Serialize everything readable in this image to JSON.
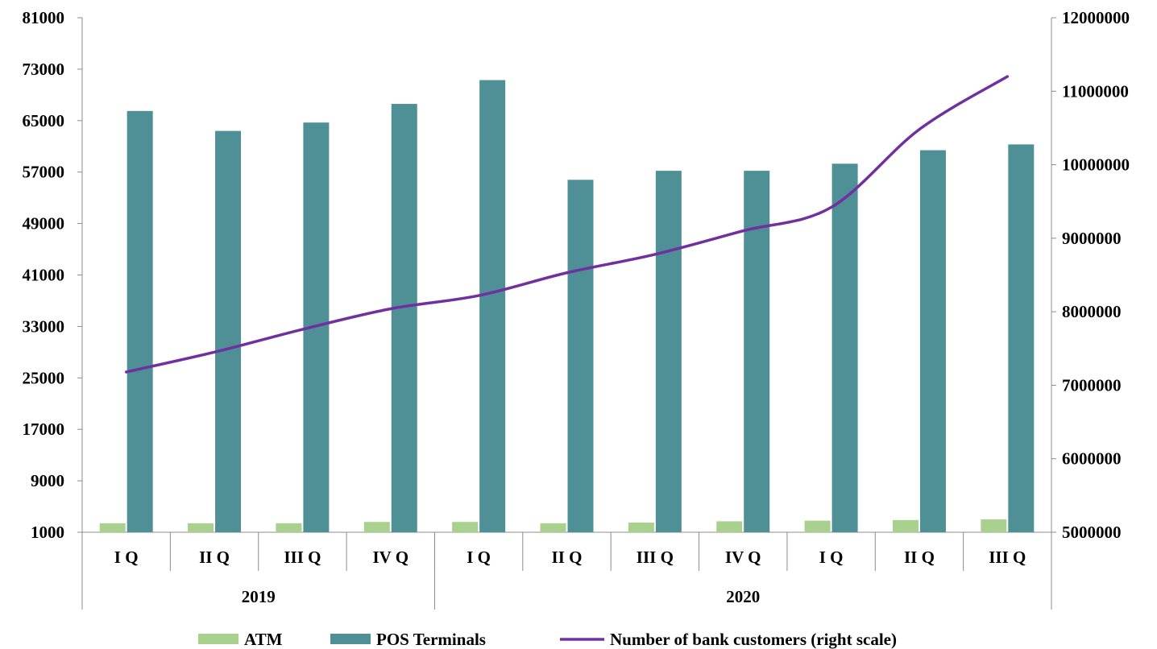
{
  "chart_data": {
    "type": "bar",
    "title": "",
    "xlabel": "",
    "ylabel": "",
    "groups": [
      {
        "label": "2019",
        "categories": [
          "I Q",
          "II Q",
          "III Q",
          "IV Q"
        ]
      },
      {
        "label": "2020",
        "categories": [
          "I Q",
          "II Q",
          "III Q",
          "IV Q",
          "I Q",
          "II Q",
          "III Q"
        ]
      }
    ],
    "categories": [
      "I Q",
      "II Q",
      "III Q",
      "IV Q",
      "I Q",
      "II Q",
      "III Q",
      "IV Q",
      "I Q",
      "II Q",
      "III Q"
    ],
    "ylim": [
      1000,
      81000
    ],
    "y_ticks": [
      "1000",
      "9000",
      "17000",
      "25000",
      "33000",
      "41000",
      "49000",
      "57000",
      "65000",
      "73000",
      "81000"
    ],
    "y2lim": [
      5000000,
      12000000
    ],
    "y2_ticks": [
      "5000000",
      "6000000",
      "7000000",
      "8000000",
      "9000000",
      "10000000",
      "11000000",
      "12000000"
    ],
    "grid": false,
    "legend_position": "bottom",
    "series": [
      {
        "name": "ATM",
        "type": "bar",
        "axis": "left",
        "color": "#a9d18e",
        "values": [
          2400,
          2400,
          2400,
          2600,
          2600,
          2400,
          2500,
          2700,
          2800,
          2900,
          3000
        ]
      },
      {
        "name": "POS Terminals",
        "type": "bar",
        "axis": "left",
        "color": "#4e9096",
        "values": [
          66500,
          63400,
          64700,
          67600,
          71300,
          55800,
          57200,
          57200,
          58300,
          60400,
          61300
        ]
      },
      {
        "name": "Number of bank customers (right scale)",
        "type": "line",
        "axis": "right",
        "color": "#7030a0",
        "values": [
          7180000,
          7450000,
          7760000,
          8040000,
          8220000,
          8530000,
          8780000,
          9100000,
          9420000,
          10480000,
          11200000
        ]
      }
    ]
  }
}
